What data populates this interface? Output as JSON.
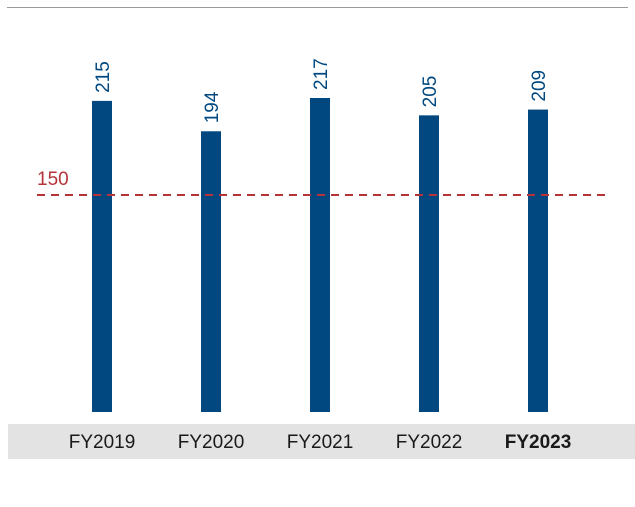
{
  "colors": {
    "bar": "#00487f",
    "value_label": "#00487f",
    "threshold": "#b4343a",
    "category_band": "#e3e3e3",
    "top_rule": "#9a9a9a",
    "category_text": "#1a1a1a"
  },
  "chart_data": {
    "type": "bar",
    "title": "",
    "xlabel": "",
    "ylabel": "",
    "categories": [
      "FY2019",
      "FY2020",
      "FY2021",
      "FY2022",
      "FY2023"
    ],
    "highlighted_category": "FY2023",
    "values": [
      215,
      194,
      217,
      205,
      209
    ],
    "value_labels": [
      "215",
      "194",
      "217",
      "205",
      "209"
    ],
    "ylim": [
      0,
      217
    ],
    "grid": false,
    "legend": "none",
    "reference_line": {
      "value": 150,
      "label": "150",
      "style": "dashed"
    }
  }
}
